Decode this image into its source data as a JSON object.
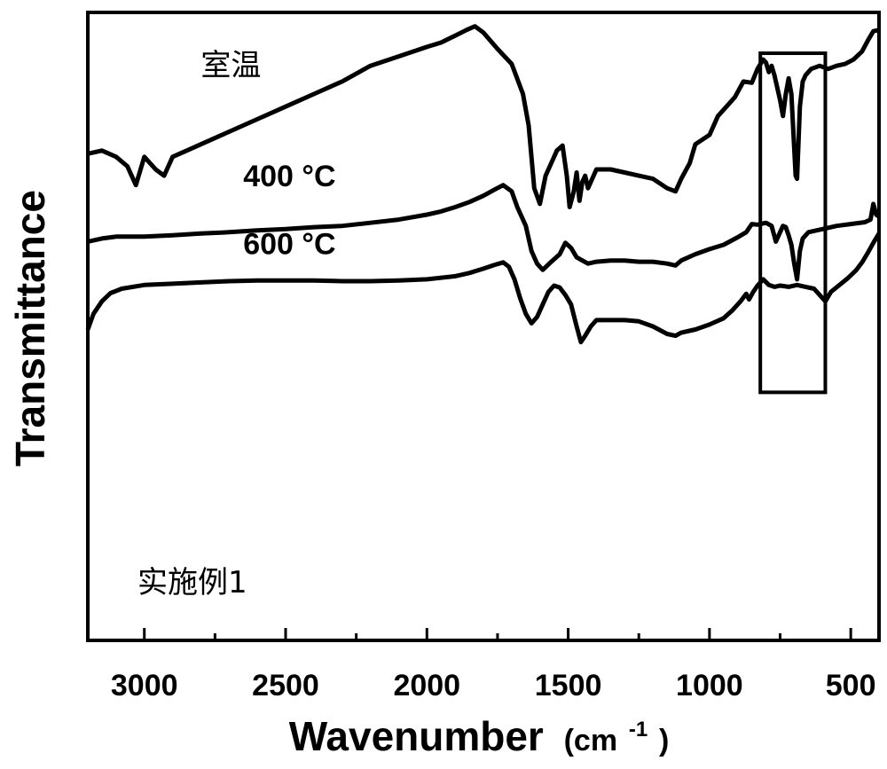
{
  "chart_data": {
    "type": "line",
    "xlabel_main": "Wavenumber",
    "xlabel_unit_open": "(cm",
    "xlabel_unit_exp": "-1",
    "xlabel_unit_close": ")",
    "ylabel": "Transmittance",
    "x_reversed": true,
    "xlim": [
      3200,
      400
    ],
    "ylim": [
      0,
      100
    ],
    "x_ticks": [
      3000,
      2500,
      2000,
      1500,
      1000,
      500
    ],
    "x_tick_labels": [
      "3000",
      "2500",
      "2000",
      "1500",
      "1000",
      "500"
    ],
    "y_ticks_shown": false,
    "grid": false,
    "annotation": "实施例1",
    "highlight_box_x_range": [
      820,
      590
    ],
    "series": [
      {
        "name": "室温",
        "label_x": 2800,
        "label_y": 90,
        "points": [
          [
            3200,
            77.5
          ],
          [
            3150,
            78
          ],
          [
            3100,
            77
          ],
          [
            3060,
            75.5
          ],
          [
            3030,
            72.5
          ],
          [
            3000,
            77
          ],
          [
            2960,
            75
          ],
          [
            2930,
            74
          ],
          [
            2900,
            77
          ],
          [
            2850,
            78
          ],
          [
            2800,
            79
          ],
          [
            2700,
            81
          ],
          [
            2600,
            83
          ],
          [
            2500,
            85
          ],
          [
            2400,
            87
          ],
          [
            2300,
            89
          ],
          [
            2200,
            91.5
          ],
          [
            2100,
            93
          ],
          [
            2000,
            94.5
          ],
          [
            1950,
            95.2
          ],
          [
            1900,
            96.3
          ],
          [
            1860,
            97.2
          ],
          [
            1830,
            97.8
          ],
          [
            1800,
            96.8
          ],
          [
            1750,
            94.2
          ],
          [
            1700,
            91.8
          ],
          [
            1660,
            87
          ],
          [
            1640,
            82
          ],
          [
            1620,
            72
          ],
          [
            1600,
            69.5
          ],
          [
            1580,
            74
          ],
          [
            1560,
            76
          ],
          [
            1540,
            78
          ],
          [
            1520,
            78.8
          ],
          [
            1505,
            74
          ],
          [
            1495,
            69
          ],
          [
            1480,
            71.5
          ],
          [
            1470,
            74.5
          ],
          [
            1460,
            70
          ],
          [
            1450,
            73
          ],
          [
            1440,
            74
          ],
          [
            1430,
            72
          ],
          [
            1400,
            75
          ],
          [
            1350,
            75
          ],
          [
            1300,
            74.5
          ],
          [
            1250,
            74
          ],
          [
            1200,
            73.5
          ],
          [
            1150,
            72
          ],
          [
            1120,
            71.5
          ],
          [
            1100,
            73.5
          ],
          [
            1070,
            76
          ],
          [
            1050,
            79
          ],
          [
            1000,
            80.5
          ],
          [
            970,
            83.5
          ],
          [
            940,
            85
          ],
          [
            910,
            86.5
          ],
          [
            880,
            89
          ],
          [
            850,
            88.8
          ],
          [
            830,
            91
          ],
          [
            810,
            92.5
          ],
          [
            800,
            92
          ],
          [
            790,
            90.5
          ],
          [
            780,
            91.5
          ],
          [
            770,
            90
          ],
          [
            750,
            86
          ],
          [
            740,
            83.5
          ],
          [
            730,
            87
          ],
          [
            720,
            89.5
          ],
          [
            710,
            87
          ],
          [
            695,
            74
          ],
          [
            690,
            73.5
          ],
          [
            680,
            85
          ],
          [
            670,
            89
          ],
          [
            660,
            90
          ],
          [
            640,
            91
          ],
          [
            610,
            91.5
          ],
          [
            580,
            91
          ],
          [
            550,
            91.5
          ],
          [
            520,
            91.8
          ],
          [
            490,
            92.5
          ],
          [
            460,
            93.8
          ],
          [
            440,
            95.5
          ],
          [
            420,
            97
          ],
          [
            400,
            97.2
          ]
        ]
      },
      {
        "name": "400 °C",
        "label_x": 2650,
        "label_y": 72.3,
        "points": [
          [
            3200,
            63.5
          ],
          [
            3150,
            64
          ],
          [
            3100,
            64.3
          ],
          [
            3000,
            64.3
          ],
          [
            2900,
            64.5
          ],
          [
            2800,
            64.8
          ],
          [
            2700,
            65
          ],
          [
            2600,
            65.3
          ],
          [
            2500,
            65.5
          ],
          [
            2400,
            65.8
          ],
          [
            2300,
            66
          ],
          [
            2200,
            66.5
          ],
          [
            2100,
            67
          ],
          [
            2000,
            67.8
          ],
          [
            1950,
            68.3
          ],
          [
            1900,
            69
          ],
          [
            1850,
            69.8
          ],
          [
            1800,
            70.8
          ],
          [
            1760,
            71.8
          ],
          [
            1730,
            72.5
          ],
          [
            1700,
            71.5
          ],
          [
            1680,
            69
          ],
          [
            1650,
            66
          ],
          [
            1630,
            62
          ],
          [
            1610,
            60
          ],
          [
            1590,
            59
          ],
          [
            1560,
            60.3
          ],
          [
            1530,
            61.5
          ],
          [
            1510,
            63.3
          ],
          [
            1490,
            62.5
          ],
          [
            1470,
            61
          ],
          [
            1450,
            60.5
          ],
          [
            1430,
            60
          ],
          [
            1400,
            60.3
          ],
          [
            1350,
            60.5
          ],
          [
            1300,
            60.5
          ],
          [
            1250,
            60.3
          ],
          [
            1200,
            60.3
          ],
          [
            1150,
            60
          ],
          [
            1120,
            59.7
          ],
          [
            1100,
            60.5
          ],
          [
            1050,
            61.5
          ],
          [
            1000,
            62.3
          ],
          [
            950,
            63
          ],
          [
            900,
            64.2
          ],
          [
            870,
            65
          ],
          [
            850,
            66.3
          ],
          [
            830,
            66.2
          ],
          [
            800,
            66.5
          ],
          [
            780,
            66
          ],
          [
            765,
            63.5
          ],
          [
            755,
            64.5
          ],
          [
            740,
            66
          ],
          [
            730,
            65.8
          ],
          [
            720,
            64.5
          ],
          [
            710,
            63
          ],
          [
            700,
            60
          ],
          [
            690,
            57.5
          ],
          [
            680,
            62
          ],
          [
            670,
            64
          ],
          [
            650,
            65
          ],
          [
            620,
            65.3
          ],
          [
            600,
            65.5
          ],
          [
            550,
            66
          ],
          [
            500,
            66.3
          ],
          [
            450,
            66.6
          ],
          [
            430,
            67
          ],
          [
            420,
            69.5
          ],
          [
            410,
            67.8
          ],
          [
            400,
            67.5
          ]
        ]
      },
      {
        "name": "600 °C",
        "label_x": 2650,
        "label_y": 61.5,
        "points": [
          [
            3200,
            49.5
          ],
          [
            3180,
            52
          ],
          [
            3150,
            54
          ],
          [
            3120,
            55.3
          ],
          [
            3080,
            56
          ],
          [
            3000,
            56.6
          ],
          [
            2900,
            56.8
          ],
          [
            2800,
            57
          ],
          [
            2700,
            57.2
          ],
          [
            2600,
            57.3
          ],
          [
            2500,
            57.3
          ],
          [
            2400,
            57.3
          ],
          [
            2300,
            57.2
          ],
          [
            2200,
            57.2
          ],
          [
            2100,
            57.3
          ],
          [
            2000,
            57.5
          ],
          [
            1900,
            58
          ],
          [
            1850,
            58.5
          ],
          [
            1800,
            59.2
          ],
          [
            1760,
            59.8
          ],
          [
            1730,
            60.2
          ],
          [
            1710,
            59.5
          ],
          [
            1690,
            57.5
          ],
          [
            1670,
            54.5
          ],
          [
            1650,
            52
          ],
          [
            1630,
            50.5
          ],
          [
            1610,
            51.5
          ],
          [
            1590,
            53.5
          ],
          [
            1570,
            55.5
          ],
          [
            1550,
            56.5
          ],
          [
            1530,
            56.2
          ],
          [
            1510,
            55
          ],
          [
            1490,
            53.5
          ],
          [
            1470,
            50
          ],
          [
            1455,
            47.5
          ],
          [
            1440,
            48.5
          ],
          [
            1420,
            50
          ],
          [
            1400,
            51
          ],
          [
            1350,
            51
          ],
          [
            1300,
            51
          ],
          [
            1250,
            50.8
          ],
          [
            1200,
            50
          ],
          [
            1150,
            48.8
          ],
          [
            1120,
            48.5
          ],
          [
            1100,
            49
          ],
          [
            1050,
            49.5
          ],
          [
            1000,
            50.3
          ],
          [
            950,
            51.3
          ],
          [
            920,
            52.5
          ],
          [
            890,
            54
          ],
          [
            870,
            55.2
          ],
          [
            860,
            54.3
          ],
          [
            845,
            55.5
          ],
          [
            830,
            56.5
          ],
          [
            810,
            57.5
          ],
          [
            790,
            56.6
          ],
          [
            770,
            56.3
          ],
          [
            750,
            56.5
          ],
          [
            720,
            56.3
          ],
          [
            690,
            56.6
          ],
          [
            660,
            56.3
          ],
          [
            630,
            56
          ],
          [
            610,
            55
          ],
          [
            590,
            54
          ],
          [
            570,
            55.5
          ],
          [
            540,
            56.6
          ],
          [
            510,
            57.7
          ],
          [
            480,
            59
          ],
          [
            460,
            60.2
          ],
          [
            440,
            61.7
          ],
          [
            420,
            63.3
          ],
          [
            400,
            64.8
          ]
        ]
      }
    ]
  }
}
